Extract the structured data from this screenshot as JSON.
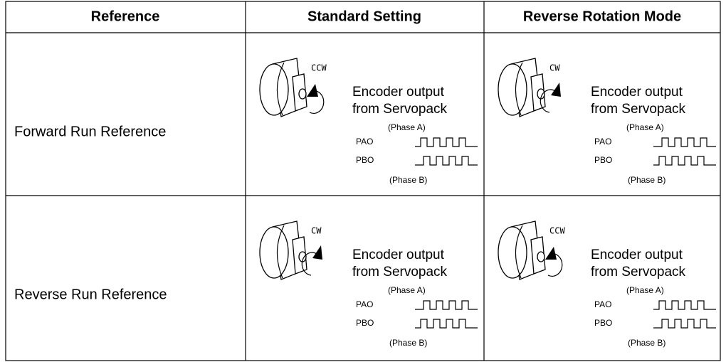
{
  "table": {
    "header": [
      "Reference",
      "Standard Setting",
      "Reverse Rotation Mode"
    ],
    "rows": [
      {
        "reference": "Forward Run Reference",
        "cells": [
          {
            "rotation": "CCW",
            "line1": "Encoder output",
            "line2": "from Servopack",
            "phase_a": "(Phase A)",
            "pao": "PAO",
            "pbo": "PBO",
            "phase_b": "(Phase B)"
          },
          {
            "rotation": "CW",
            "line1": "Encoder output",
            "line2": "from Servopack",
            "phase_a": "(Phase A)",
            "pao": "PAO",
            "pbo": "PBO",
            "phase_b": "(Phase B)"
          }
        ]
      },
      {
        "reference": "Reverse Run Reference",
        "cells": [
          {
            "rotation": "CW",
            "line1": "Encoder output",
            "line2": "from Servopack",
            "phase_a": "(Phase A)",
            "pao": "PAO",
            "pbo": "PBO",
            "phase_b": "(Phase B)"
          },
          {
            "rotation": "CCW",
            "line1": "Encoder output",
            "line2": "from Servopack",
            "phase_a": "(Phase A)",
            "pao": "PAO",
            "pbo": "PBO",
            "phase_b": "(Phase B)"
          }
        ]
      }
    ]
  }
}
